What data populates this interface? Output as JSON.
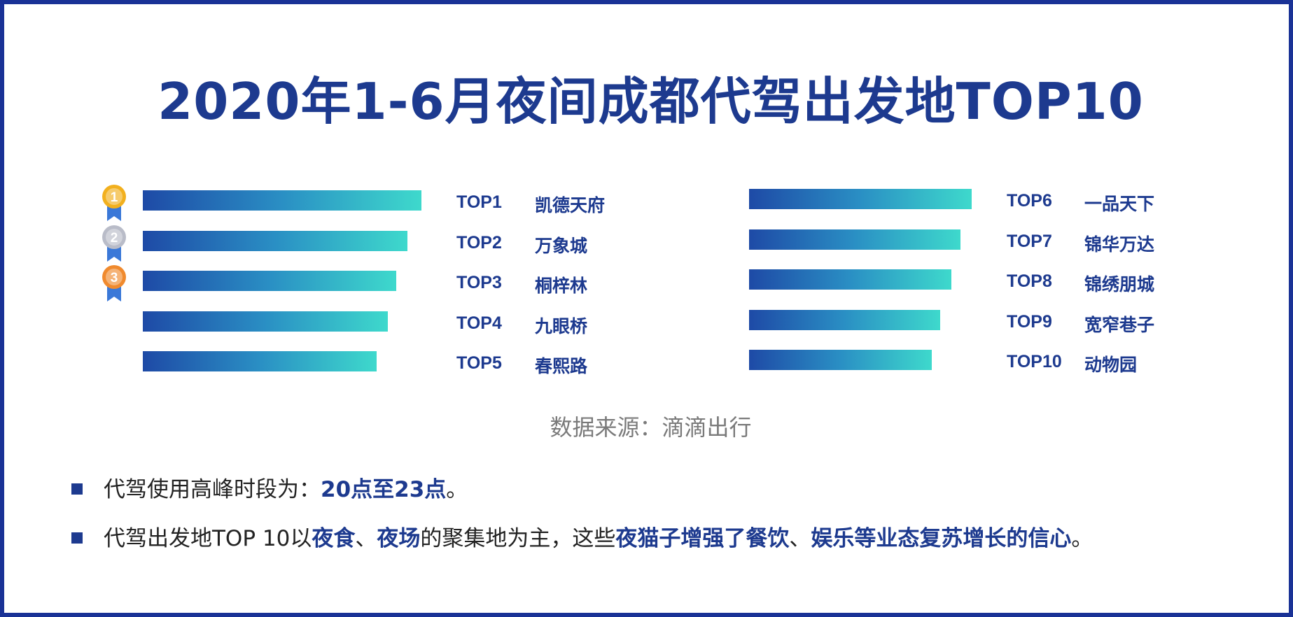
{
  "title": "2020年1-6月夜间成都代驾出发地TOP10",
  "chart_data": {
    "type": "bar",
    "title": "2020年1-6月夜间成都代驾出发地TOP10",
    "ranks": [
      "TOP1",
      "TOP2",
      "TOP3",
      "TOP4",
      "TOP5",
      "TOP6",
      "TOP7",
      "TOP8",
      "TOP9",
      "TOP10"
    ],
    "categories": [
      "凯德天府",
      "万象城",
      "桐梓林",
      "九眼桥",
      "春熙路",
      "一品天下",
      "锦华万达",
      "锦绣朋城",
      "宽窄巷子",
      "动物园"
    ],
    "values": [
      100,
      95,
      91,
      88,
      84,
      100,
      95,
      91,
      86,
      82
    ],
    "bar_colors": [
      "#1e4aa6",
      "#3ed9cc"
    ],
    "medals": [
      "1",
      "2",
      "3"
    ],
    "medal_colors": [
      "#f2b01e",
      "#b9bcc8",
      "#f08a2e"
    ]
  },
  "source": "数据来源：滴滴出行",
  "notes": [
    {
      "bullet": "■",
      "parts": [
        {
          "text": "代驾使用高峰时段为：",
          "hl": false
        },
        {
          "text": "20点至23点",
          "hl": true
        },
        {
          "text": "。",
          "hl": false
        }
      ]
    },
    {
      "bullet": "■",
      "parts": [
        {
          "text": "代驾出发地TOP 10以",
          "hl": false
        },
        {
          "text": "夜食",
          "hl": true
        },
        {
          "text": "、",
          "hl": false
        },
        {
          "text": "夜场",
          "hl": true
        },
        {
          "text": "的聚集地为主，这些",
          "hl": false
        },
        {
          "text": "夜猫子增强了餐饮",
          "hl": true
        },
        {
          "text": "、",
          "hl": false
        },
        {
          "text": "娱乐等业态复苏增长的信心",
          "hl": true
        },
        {
          "text": "。",
          "hl": false
        }
      ]
    }
  ]
}
